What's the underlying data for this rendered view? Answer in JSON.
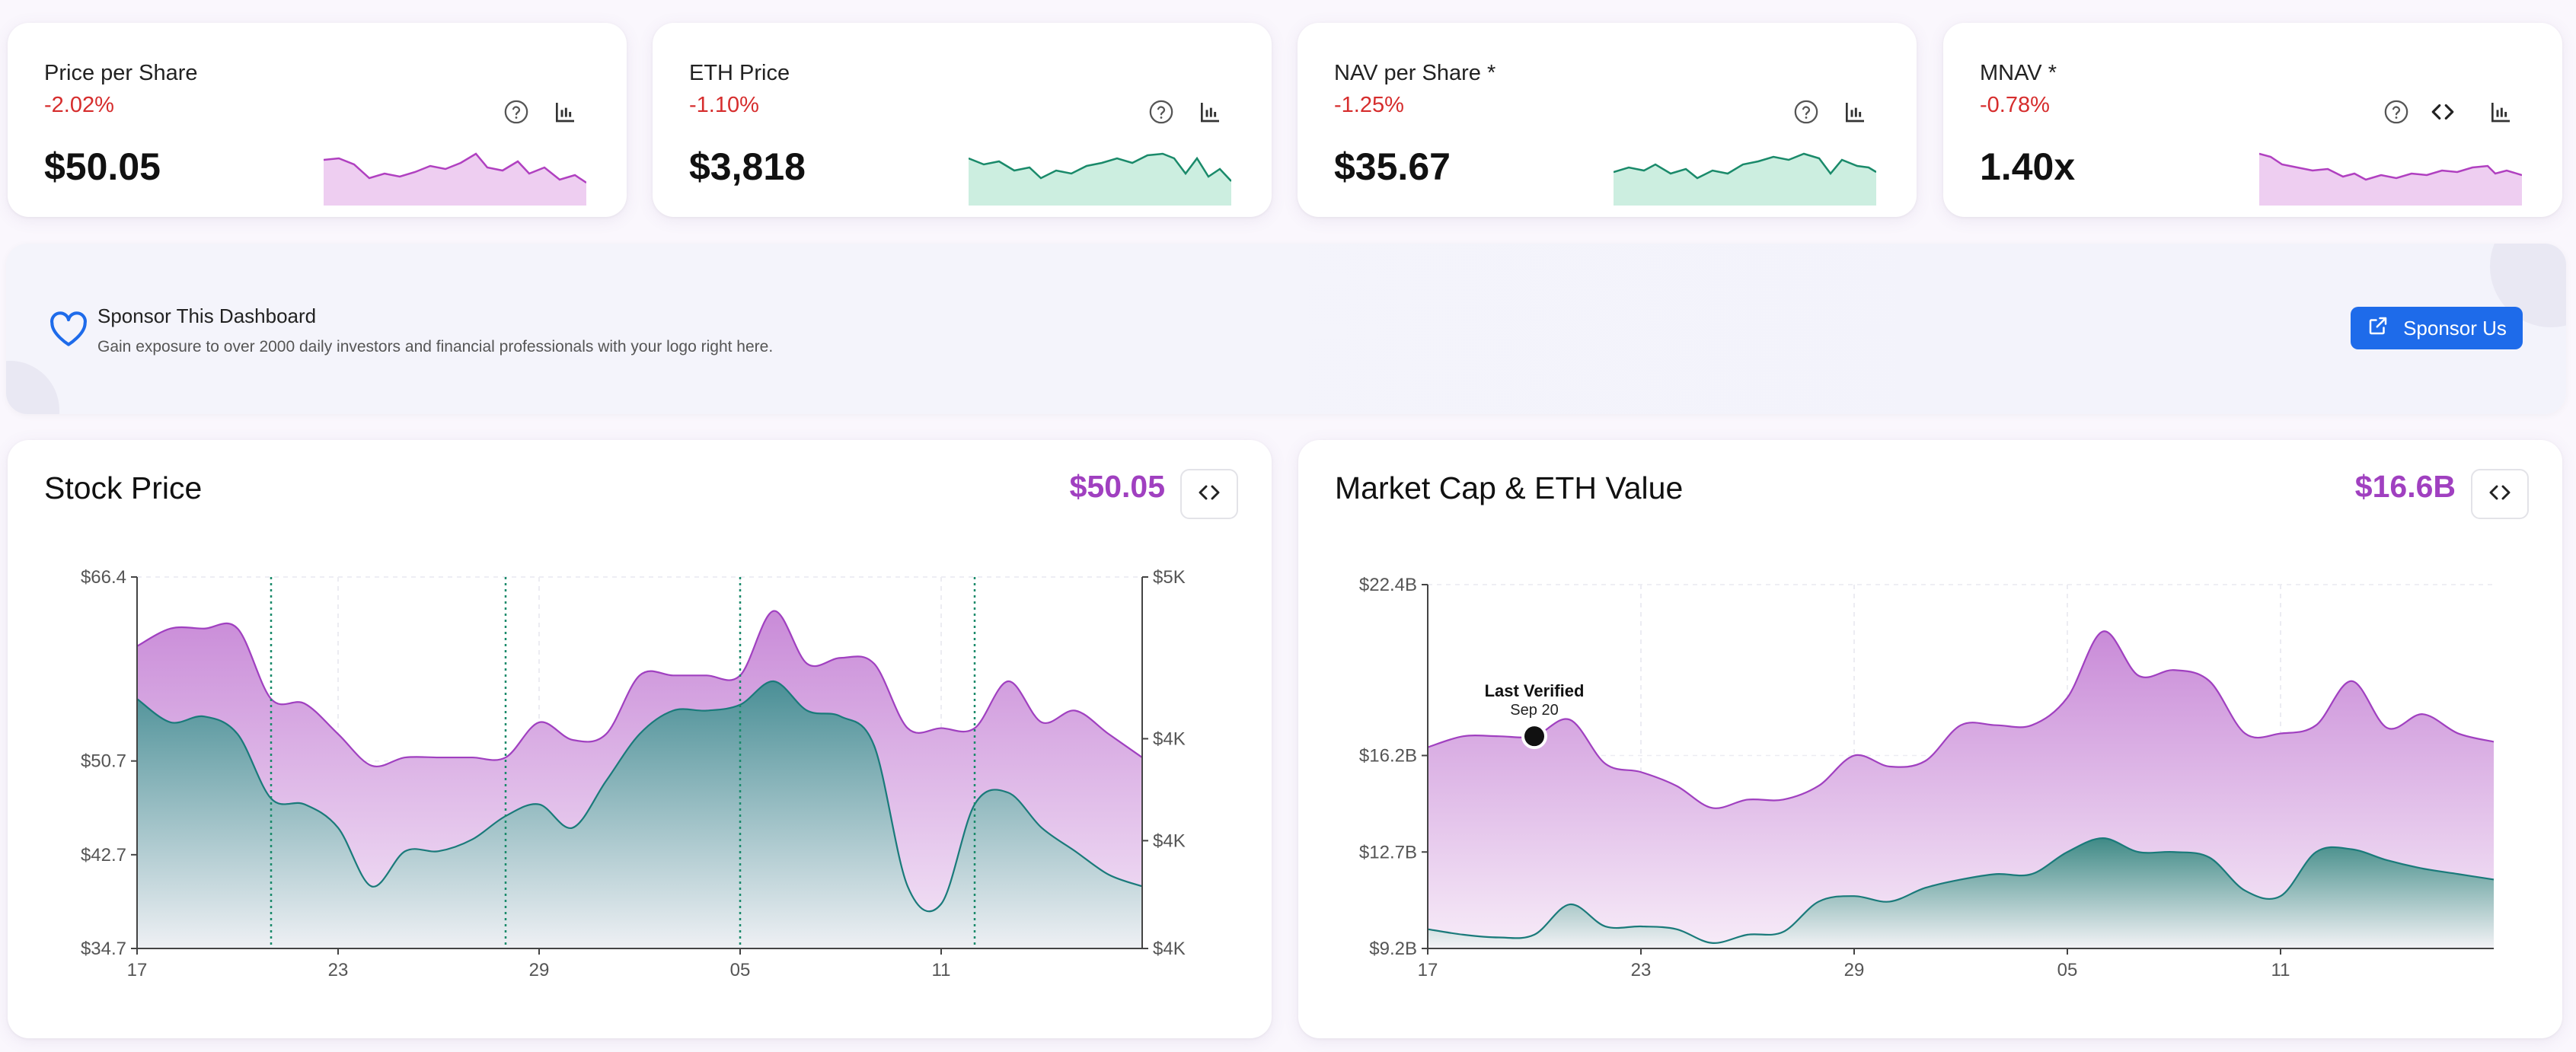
{
  "kpis": [
    {
      "title": "Price per Share",
      "change": "-2.02%",
      "value": "$50.05",
      "spark_color": "#b040c0",
      "spark_fill": "#e3b6ea",
      "icons": [
        "help-icon",
        "bar-chart-icon"
      ]
    },
    {
      "title": "ETH Price",
      "change": "-1.10%",
      "value": "$3,818",
      "spark_color": "#1a8a6a",
      "spark_fill": "#b8e8d6",
      "icons": [
        "help-icon",
        "bar-chart-icon"
      ]
    },
    {
      "title": "NAV per Share *",
      "change": "-1.25%",
      "value": "$35.67",
      "spark_color": "#1a8a6a",
      "spark_fill": "#b8e8d6",
      "icons": [
        "help-icon",
        "bar-chart-icon"
      ]
    },
    {
      "title": "MNAV *",
      "change": "-0.78%",
      "value": "1.40x",
      "spark_color": "#b040c0",
      "spark_fill": "#e3b6ea",
      "icons": [
        "help-icon",
        "code-icon",
        "bar-chart-icon"
      ]
    }
  ],
  "sponsor": {
    "title": "Sponsor This Dashboard",
    "description": "Gain exposure to over 2000 daily investors and financial professionals with your logo right here.",
    "button_label": "Sponsor Us"
  },
  "stock_chart": {
    "title": "Stock Price",
    "value": "$50.05",
    "chart_data": {
      "type": "area",
      "x_ticks": [
        "17",
        "23",
        "29",
        "05",
        "11"
      ],
      "y_left_ticks": [
        "$66.4",
        "$50.7",
        "$42.7",
        "$34.7"
      ],
      "y_right_ticks": [
        "$5K",
        "$4K",
        "$4K",
        "$4K"
      ],
      "y_left_range": [
        34.7,
        66.4
      ],
      "series": [
        {
          "name": "Stock Price",
          "color": "#a040c0",
          "values": [
            60.5,
            62,
            62,
            62,
            56,
            55.6,
            53,
            50.3,
            51,
            51,
            51,
            51,
            54,
            52.5,
            53,
            58,
            58,
            58,
            58,
            63.5,
            59,
            59.5,
            59,
            53.5,
            53.5,
            53.5,
            57.5,
            54,
            55,
            53,
            51
          ]
        },
        {
          "name": "ETH Price",
          "color": "#1a7a7a",
          "values": [
            56,
            54,
            54.5,
            53,
            47.5,
            47,
            45,
            40,
            43,
            43,
            44,
            46,
            47,
            45,
            49,
            53,
            55,
            55,
            55.5,
            57.5,
            55,
            54.5,
            52,
            40,
            38.5,
            47,
            48,
            45,
            43,
            41,
            40
          ]
        }
      ],
      "verification_lines": [
        "21",
        "28",
        "05",
        "12"
      ]
    }
  },
  "mcap_chart": {
    "title": "Market Cap & ETH Value",
    "value": "$16.6B",
    "annotation": {
      "label": "Last Verified",
      "date": "Sep 20"
    },
    "chart_data": {
      "type": "area",
      "x_ticks": [
        "17",
        "23",
        "29",
        "05",
        "11"
      ],
      "y_ticks": [
        "$22.4B",
        "$16.2B",
        "$12.7B",
        "$9.2B"
      ],
      "y_range": [
        9.2,
        22.4
      ],
      "series": [
        {
          "name": "Market Cap",
          "color": "#a040c0",
          "values": [
            16.5,
            16.9,
            16.9,
            16.9,
            17.5,
            15.9,
            15.6,
            15.1,
            14.3,
            14.6,
            14.6,
            15.1,
            16.2,
            15.8,
            16,
            17.3,
            17.3,
            17.3,
            18.3,
            20.7,
            19.1,
            19.3,
            18.9,
            17,
            17,
            17.3,
            18.9,
            17.2,
            17.7,
            17,
            16.7
          ]
        },
        {
          "name": "ETH Value",
          "color": "#1a7a7a",
          "values": [
            9.9,
            9.7,
            9.6,
            9.7,
            10.8,
            10,
            10,
            9.9,
            9.4,
            9.7,
            9.8,
            10.9,
            11.1,
            10.9,
            11.4,
            11.7,
            11.9,
            11.9,
            12.7,
            13.2,
            12.7,
            12.7,
            12.5,
            11.3,
            11.1,
            12.7,
            12.8,
            12.4,
            12.1,
            11.9,
            11.7
          ]
        }
      ]
    }
  }
}
